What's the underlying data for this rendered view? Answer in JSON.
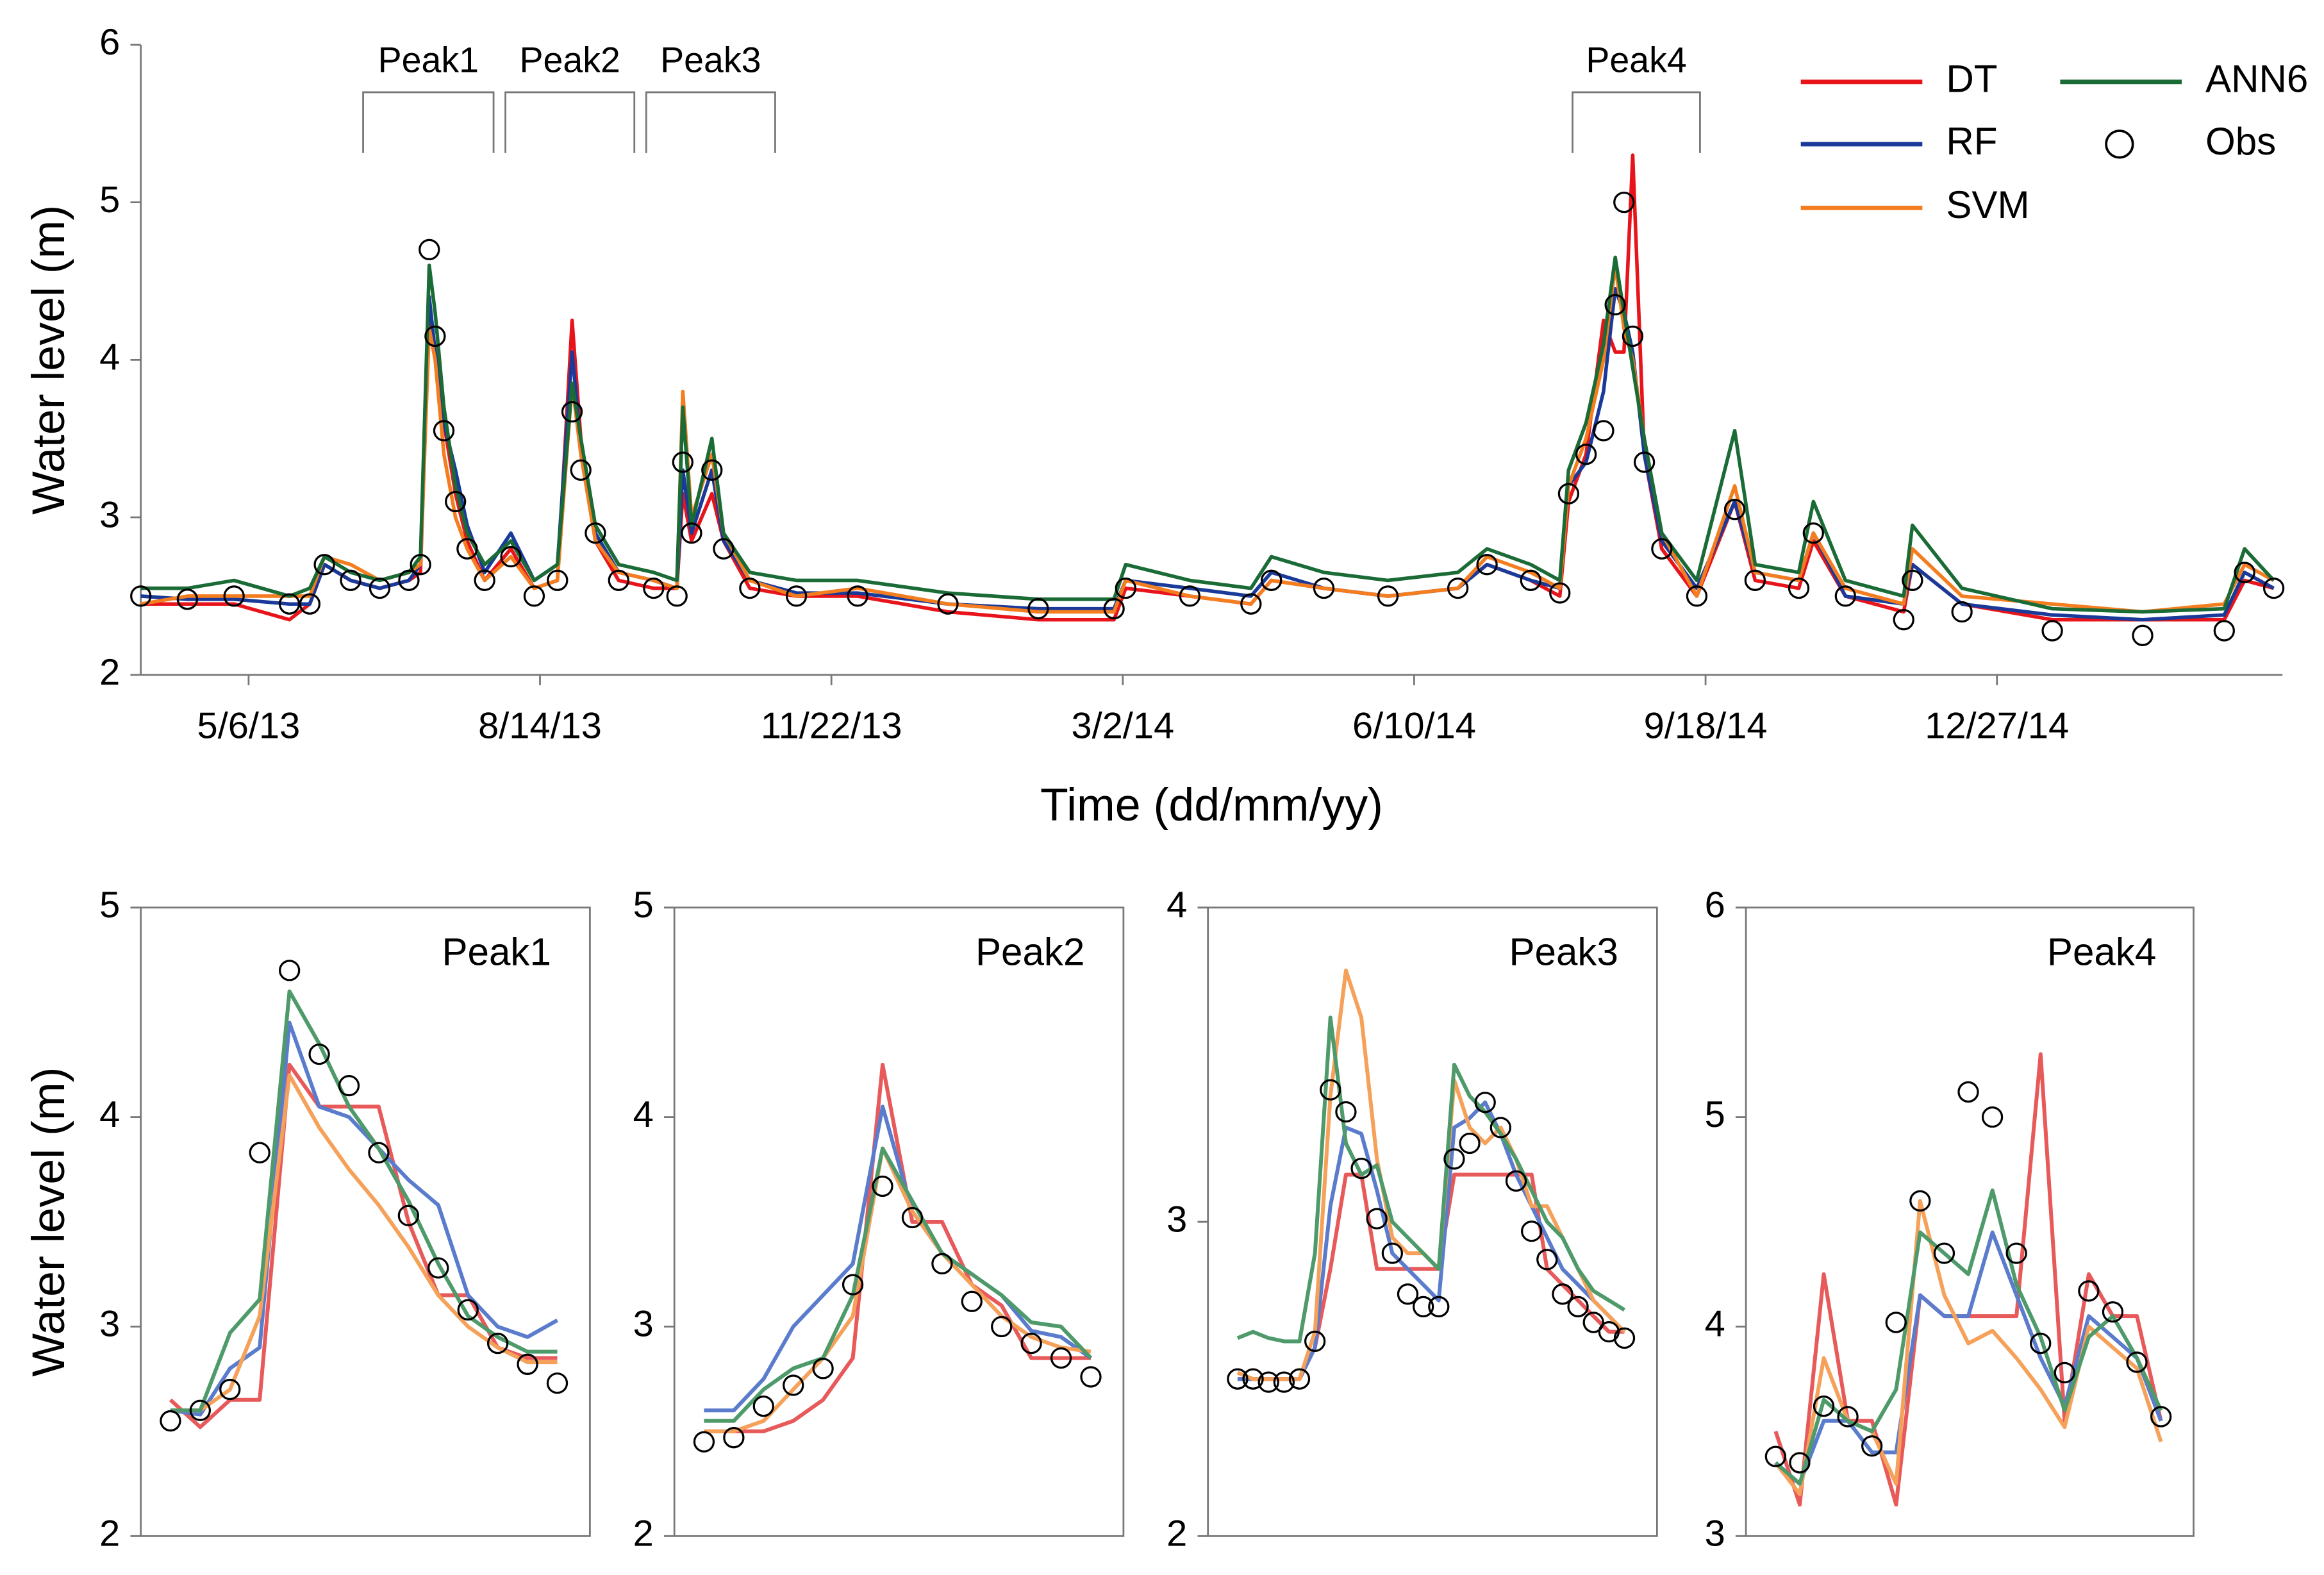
{
  "chart_data": [
    {
      "type": "line",
      "title": null,
      "xlabel": "Time (dd/mm/yy)",
      "ylabel": "Water level (m)",
      "annotations": [
        "Peak1",
        "Peak2",
        "Peak3",
        "Peak4"
      ],
      "legend": "upper right",
      "xlim": [
        "3/30/13",
        "4/4/15"
      ],
      "xticks": [
        "5/6/13",
        "8/14/13",
        "11/22/13",
        "3/2/14",
        "6/10/14",
        "9/18/14",
        "12/27/14"
      ],
      "ylim": [
        2,
        6
      ],
      "yticks": [
        2,
        3,
        4,
        5,
        6
      ],
      "x": [
        "3/30/13",
        "4/15/13",
        "5/1/13",
        "5/20/13",
        "5/27/13",
        "6/1/13",
        "6/10/13",
        "6/20/13",
        "6/30/13",
        "7/4/13",
        "7/7/13",
        "7/9/13",
        "7/12/13",
        "7/16/13",
        "7/20/13",
        "7/26/13",
        "8/4/13",
        "8/12/13",
        "8/20/13",
        "8/25/13",
        "8/28/13",
        "9/2/13",
        "9/10/13",
        "9/22/13",
        "9/30/13",
        "10/2/13",
        "10/5/13",
        "10/12/13",
        "10/16/13",
        "10/25/13",
        "11/10/13",
        "12/1/13",
        "1/1/14",
        "2/1/14",
        "2/27/14",
        "3/3/14",
        "3/25/14",
        "4/15/14",
        "4/22/14",
        "5/10/14",
        "6/1/14",
        "6/25/14",
        "7/5/14",
        "7/20/14",
        "7/30/14",
        "8/2/14",
        "8/8/14",
        "8/14/14",
        "8/18/14",
        "8/21/14",
        "8/24/14",
        "8/28/14",
        "9/3/14",
        "9/15/14",
        "9/28/14",
        "10/5/14",
        "10/20/14",
        "10/25/14",
        "11/5/14",
        "11/25/14",
        "11/28/14",
        "12/15/14",
        "1/15/15",
        "2/15/15",
        "3/15/15",
        "3/22/15",
        "4/1/15"
      ],
      "series": [
        {
          "name": "DT",
          "color": "#e8141b",
          "values": [
            2.45,
            2.45,
            2.45,
            2.35,
            2.45,
            2.7,
            2.6,
            2.55,
            2.6,
            2.65,
            4.3,
            4.05,
            3.6,
            3.15,
            2.85,
            2.6,
            2.8,
            2.55,
            2.6,
            4.25,
            3.5,
            2.85,
            2.6,
            2.55,
            2.55,
            3.15,
            2.85,
            3.15,
            2.85,
            2.55,
            2.5,
            2.5,
            2.4,
            2.35,
            2.35,
            2.55,
            2.5,
            2.45,
            2.6,
            2.55,
            2.5,
            2.55,
            2.7,
            2.6,
            2.5,
            3.1,
            3.4,
            4.25,
            4.05,
            4.05,
            5.3,
            3.4,
            2.8,
            2.5,
            3.1,
            2.6,
            2.55,
            2.85,
            2.5,
            2.4,
            2.7,
            2.45,
            2.35,
            2.35,
            2.35,
            2.6,
            2.55
          ]
        },
        {
          "name": "RF",
          "color": "#1a3a9a",
          "values": [
            2.5,
            2.48,
            2.48,
            2.45,
            2.45,
            2.7,
            2.6,
            2.55,
            2.6,
            2.7,
            4.4,
            4.05,
            3.6,
            3.3,
            2.95,
            2.65,
            2.9,
            2.6,
            2.7,
            4.05,
            3.45,
            2.9,
            2.65,
            2.6,
            2.55,
            3.3,
            2.9,
            3.3,
            2.85,
            2.6,
            2.52,
            2.52,
            2.45,
            2.42,
            2.42,
            2.6,
            2.55,
            2.5,
            2.65,
            2.55,
            2.5,
            2.55,
            2.7,
            2.6,
            2.55,
            3.2,
            3.35,
            3.8,
            4.45,
            4.3,
            4.05,
            3.4,
            2.85,
            2.55,
            3.1,
            2.65,
            2.6,
            2.9,
            2.5,
            2.45,
            2.7,
            2.45,
            2.38,
            2.35,
            2.38,
            2.65,
            2.55
          ]
        },
        {
          "name": "SVM",
          "color": "#f47d20",
          "values": [
            2.45,
            2.5,
            2.5,
            2.5,
            2.5,
            2.75,
            2.7,
            2.6,
            2.65,
            2.7,
            4.2,
            4.0,
            3.4,
            3.0,
            2.8,
            2.6,
            2.75,
            2.55,
            2.6,
            3.85,
            3.4,
            2.85,
            2.65,
            2.6,
            2.55,
            3.8,
            3.0,
            3.4,
            2.9,
            2.6,
            2.5,
            2.55,
            2.45,
            2.4,
            2.4,
            2.6,
            2.5,
            2.45,
            2.6,
            2.55,
            2.5,
            2.55,
            2.75,
            2.65,
            2.55,
            3.2,
            3.5,
            4.0,
            4.6,
            4.2,
            4.0,
            3.5,
            2.9,
            2.5,
            3.2,
            2.65,
            2.6,
            2.9,
            2.55,
            2.45,
            2.8,
            2.5,
            2.45,
            2.4,
            2.45,
            2.7,
            2.6
          ]
        },
        {
          "name": "ANN6",
          "color": "#1a6b36",
          "values": [
            2.55,
            2.55,
            2.6,
            2.5,
            2.55,
            2.75,
            2.65,
            2.6,
            2.65,
            2.75,
            4.6,
            4.3,
            3.7,
            3.2,
            2.9,
            2.7,
            2.85,
            2.6,
            2.7,
            3.85,
            3.5,
            2.95,
            2.7,
            2.65,
            2.6,
            3.7,
            2.95,
            3.5,
            2.9,
            2.65,
            2.6,
            2.6,
            2.52,
            2.48,
            2.48,
            2.7,
            2.6,
            2.55,
            2.75,
            2.65,
            2.6,
            2.65,
            2.8,
            2.7,
            2.6,
            3.3,
            3.6,
            4.1,
            4.65,
            4.3,
            3.95,
            3.5,
            2.9,
            2.6,
            3.55,
            2.7,
            2.65,
            3.1,
            2.6,
            2.5,
            2.95,
            2.55,
            2.42,
            2.4,
            2.42,
            2.8,
            2.6
          ]
        },
        {
          "name": "Obs",
          "color": "#000000",
          "marker": "circle",
          "values": [
            2.5,
            2.48,
            2.5,
            2.45,
            2.45,
            2.7,
            2.6,
            2.55,
            2.6,
            2.7,
            4.7,
            4.15,
            3.55,
            3.1,
            2.8,
            2.6,
            2.75,
            2.5,
            2.6,
            3.67,
            3.3,
            2.9,
            2.6,
            2.55,
            2.5,
            3.35,
            2.9,
            3.3,
            2.8,
            2.55,
            2.5,
            2.5,
            2.45,
            2.42,
            2.42,
            2.55,
            2.5,
            2.45,
            2.6,
            2.55,
            2.5,
            2.55,
            2.7,
            2.6,
            2.52,
            3.15,
            3.4,
            3.55,
            4.35,
            5.0,
            4.15,
            3.35,
            2.8,
            2.5,
            3.05,
            2.6,
            2.55,
            2.9,
            2.5,
            2.35,
            2.6,
            2.4,
            2.28,
            2.25,
            2.28,
            2.65,
            2.55
          ]
        }
      ]
    },
    {
      "type": "line",
      "title": "Peak1",
      "ylabel": "Water level (m)",
      "ylim": [
        2,
        5
      ],
      "yticks": [
        2,
        3,
        4,
        5
      ],
      "series": [
        {
          "name": "DT",
          "color": "#e8595a",
          "values": [
            2.65,
            2.52,
            2.65,
            2.65,
            4.25,
            4.05,
            4.05,
            4.05,
            3.5,
            3.15,
            3.15,
            2.9,
            2.85,
            2.85
          ]
        },
        {
          "name": "RF",
          "color": "#5b7ccc",
          "values": [
            2.6,
            2.58,
            2.8,
            2.9,
            4.45,
            4.05,
            4.0,
            3.85,
            3.7,
            3.58,
            3.15,
            3.0,
            2.95,
            3.03
          ]
        },
        {
          "name": "SVM",
          "color": "#f5a15a",
          "values": [
            2.6,
            2.6,
            2.7,
            3.05,
            4.2,
            3.95,
            3.75,
            3.58,
            3.38,
            3.15,
            3.0,
            2.9,
            2.83,
            2.83
          ]
        },
        {
          "name": "ANN6",
          "color": "#4e9a6a",
          "values": [
            2.6,
            2.6,
            2.97,
            3.13,
            4.6,
            4.35,
            4.05,
            3.85,
            3.6,
            3.3,
            3.05,
            2.95,
            2.88,
            2.88
          ]
        },
        {
          "name": "Obs",
          "color": "#000000",
          "marker": "circle",
          "values": [
            2.55,
            2.6,
            2.7,
            3.83,
            4.7,
            4.3,
            4.15,
            3.83,
            3.53,
            3.28,
            3.08,
            2.92,
            2.82,
            2.73
          ]
        }
      ]
    },
    {
      "type": "line",
      "title": "Peak2",
      "ylim": [
        2,
        5
      ],
      "yticks": [
        2,
        3,
        4,
        5
      ],
      "series": [
        {
          "name": "DT",
          "color": "#e8595a",
          "values": [
            2.5,
            2.5,
            2.5,
            2.55,
            2.65,
            2.85,
            4.25,
            3.5,
            3.5,
            3.2,
            3.1,
            2.85,
            2.85,
            2.85
          ]
        },
        {
          "name": "RF",
          "color": "#5b7ccc",
          "values": [
            2.6,
            2.6,
            2.75,
            3.0,
            3.15,
            3.3,
            4.05,
            3.55,
            3.35,
            3.25,
            3.15,
            2.98,
            2.95,
            2.85
          ]
        },
        {
          "name": "SVM",
          "color": "#f5a15a",
          "values": [
            2.5,
            2.5,
            2.55,
            2.7,
            2.85,
            3.05,
            3.85,
            3.55,
            3.35,
            3.2,
            3.05,
            2.95,
            2.9,
            2.88
          ]
        },
        {
          "name": "ANN6",
          "color": "#4e9a6a",
          "values": [
            2.55,
            2.55,
            2.7,
            2.8,
            2.85,
            3.15,
            3.85,
            3.6,
            3.35,
            3.25,
            3.15,
            3.02,
            3.0,
            2.85
          ]
        },
        {
          "name": "Obs",
          "color": "#000000",
          "marker": "circle",
          "values": [
            2.45,
            2.47,
            2.62,
            2.72,
            2.8,
            3.2,
            3.67,
            3.52,
            3.3,
            3.12,
            3.0,
            2.92,
            2.85,
            2.76
          ]
        }
      ]
    },
    {
      "type": "line",
      "title": "Peak3",
      "ylim": [
        2,
        4
      ],
      "yticks": [
        2,
        3,
        4
      ],
      "series": [
        {
          "name": "DT",
          "color": "#e8595a",
          "values": [
            2.5,
            2.5,
            2.5,
            2.5,
            2.5,
            2.6,
            2.85,
            3.15,
            3.15,
            2.85,
            2.85,
            2.85,
            2.85,
            2.85,
            3.15,
            3.15,
            3.15,
            3.15,
            3.15,
            3.15,
            2.85,
            2.8,
            2.75,
            2.7,
            2.65,
            2.65
          ]
        },
        {
          "name": "RF",
          "color": "#5b7ccc",
          "values": [
            2.5,
            2.5,
            2.5,
            2.5,
            2.5,
            2.6,
            3.05,
            3.3,
            3.28,
            3.1,
            2.9,
            2.85,
            2.8,
            2.75,
            3.3,
            3.33,
            3.38,
            3.28,
            3.15,
            3.05,
            2.95,
            2.85,
            2.8,
            2.75,
            2.7,
            2.65
          ]
        },
        {
          "name": "SVM",
          "color": "#f5a15a",
          "values": [
            2.52,
            2.5,
            2.5,
            2.5,
            2.5,
            2.65,
            3.4,
            3.8,
            3.65,
            3.2,
            2.95,
            2.9,
            2.9,
            2.85,
            3.45,
            3.3,
            3.25,
            3.3,
            3.2,
            3.05,
            3.05,
            2.95,
            2.85,
            2.75,
            2.7,
            2.65
          ]
        },
        {
          "name": "ANN6",
          "color": "#4e9a6a",
          "values": [
            2.63,
            2.65,
            2.63,
            2.62,
            2.62,
            2.9,
            3.65,
            3.25,
            3.15,
            3.18,
            3.0,
            2.95,
            2.9,
            2.85,
            3.5,
            3.4,
            3.35,
            3.28,
            3.2,
            3.1,
            3.0,
            2.95,
            2.85,
            2.78,
            2.75,
            2.72
          ]
        },
        {
          "name": "Obs",
          "color": "#000000",
          "marker": "circle",
          "values": [
            2.5,
            2.5,
            2.49,
            2.49,
            2.5,
            2.62,
            3.42,
            3.35,
            3.17,
            3.01,
            2.9,
            2.77,
            2.73,
            2.73,
            3.2,
            3.25,
            3.38,
            3.3,
            3.13,
            2.97,
            2.88,
            2.77,
            2.73,
            2.68,
            2.65,
            2.63
          ]
        }
      ]
    },
    {
      "type": "line",
      "title": "Peak4",
      "ylim": [
        3,
        6
      ],
      "yticks": [
        3,
        4,
        5,
        6
      ],
      "series": [
        {
          "name": "DT",
          "color": "#e8595a",
          "values": [
            3.5,
            3.15,
            4.25,
            3.55,
            3.55,
            3.15,
            4.15,
            4.05,
            4.05,
            4.05,
            4.05,
            5.3,
            3.55,
            4.25,
            4.05,
            4.05,
            3.55
          ]
        },
        {
          "name": "RF",
          "color": "#5b7ccc",
          "values": [
            3.35,
            3.25,
            3.55,
            3.55,
            3.4,
            3.4,
            4.15,
            4.05,
            4.05,
            4.45,
            4.15,
            3.85,
            3.62,
            4.05,
            3.95,
            3.85,
            3.55
          ]
        },
        {
          "name": "SVM",
          "color": "#f5a15a",
          "values": [
            3.35,
            3.2,
            3.85,
            3.55,
            3.5,
            3.25,
            4.6,
            4.15,
            3.92,
            3.98,
            3.85,
            3.7,
            3.52,
            4.0,
            3.9,
            3.8,
            3.45
          ]
        },
        {
          "name": "ANN6",
          "color": "#4e9a6a",
          "values": [
            3.35,
            3.25,
            3.65,
            3.55,
            3.5,
            3.7,
            4.45,
            4.35,
            4.25,
            4.65,
            4.2,
            3.95,
            3.6,
            3.95,
            4.05,
            3.85,
            3.6
          ]
        },
        {
          "name": "Obs",
          "color": "#000000",
          "marker": "circle",
          "values": [
            3.38,
            3.35,
            3.62,
            3.57,
            3.43,
            4.02,
            4.6,
            4.35,
            5.12,
            5.0,
            4.35,
            3.92,
            3.78,
            4.17,
            4.07,
            3.83,
            3.57
          ]
        }
      ]
    }
  ]
}
